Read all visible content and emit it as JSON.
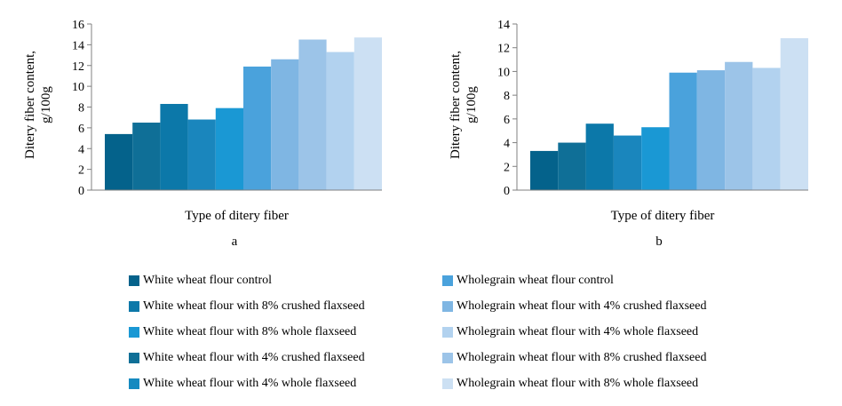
{
  "chart_data": [
    {
      "type": "bar",
      "panel_label": "a",
      "xlabel": "Type of ditery fiber",
      "ylabel": "Ditery fiber content, g/100g",
      "ylim": [
        0,
        16
      ],
      "yticks": [
        0,
        2,
        4,
        6,
        8,
        10,
        12,
        14,
        16
      ],
      "grid": false,
      "series": [
        {
          "name": "White wheat flour control",
          "values": [
            5.4
          ]
        },
        {
          "name": "White wheat flour with 8% crushed flaxseed",
          "values": [
            6.5
          ]
        },
        {
          "name": "White wheat flour with 8% whole flaxseed",
          "values": [
            8.3
          ]
        },
        {
          "name": "White wheat flour with 4% crushed flaxseed",
          "values": [
            6.8
          ]
        },
        {
          "name": "White wheat flour with 4% whole flaxseed",
          "values": [
            7.9
          ]
        },
        {
          "name": "Wholegrain wheat flour control",
          "values": [
            11.9
          ]
        },
        {
          "name": "Wholegrain wheat flour with 4% crushed flaxseed",
          "values": [
            12.6
          ]
        },
        {
          "name": "Wholegrain wheat flour with 4% whole flaxseed",
          "values": [
            14.5
          ]
        },
        {
          "name": "Wholegrain wheat flour with 8% crushed flaxseed",
          "values": [
            13.3
          ]
        },
        {
          "name": "Wholegrain wheat flour with 8% whole flaxseed",
          "values": [
            14.7
          ]
        }
      ]
    },
    {
      "type": "bar",
      "panel_label": "b",
      "xlabel": "Type of ditery fiber",
      "ylabel": "Ditery fiber content, g/100g",
      "ylim": [
        0,
        14
      ],
      "yticks": [
        0,
        2,
        4,
        6,
        8,
        10,
        12,
        14
      ],
      "grid": false,
      "series": [
        {
          "name": "White wheat flour control",
          "values": [
            3.3
          ]
        },
        {
          "name": "White wheat flour with 8% crushed flaxseed",
          "values": [
            4.0
          ]
        },
        {
          "name": "White wheat flour with 8% whole flaxseed",
          "values": [
            5.6
          ]
        },
        {
          "name": "White wheat flour with 4% crushed flaxseed",
          "values": [
            4.6
          ]
        },
        {
          "name": "White wheat flour with 4% whole flaxseed",
          "values": [
            5.3
          ]
        },
        {
          "name": "Wholegrain wheat flour control",
          "values": [
            9.9
          ]
        },
        {
          "name": "Wholegrain wheat flour with 4% crushed flaxseed",
          "values": [
            10.1
          ]
        },
        {
          "name": "Wholegrain wheat flour with 4% whole flaxseed",
          "values": [
            10.8
          ]
        },
        {
          "name": "Wholegrain wheat flour with 8% crushed flaxseed",
          "values": [
            10.3
          ]
        },
        {
          "name": "Wholegrain wheat flour with 8% whole flaxseed",
          "values": [
            12.8
          ]
        }
      ]
    }
  ],
  "legend": {
    "placement": "bottom",
    "columns": [
      [
        {
          "label": "White wheat flour control",
          "color": "#04628b"
        },
        {
          "label": "White wheat flour with 8% crushed flaxseed",
          "color": "#0c78a9"
        },
        {
          "label": "White wheat flour with 8% whole flaxseed",
          "color": "#1a98d4"
        },
        {
          "label": "White wheat flour with 4% crushed flaxseed",
          "color": "#0f6f97"
        },
        {
          "label": "White wheat flour with 4% whole flaxseed",
          "color": "#158ac0"
        }
      ],
      [
        {
          "label": "Wholegrain wheat flour control",
          "color": "#4aa2dc"
        },
        {
          "label": "Wholegrain wheat flour with 4% crushed flaxseed",
          "color": "#7fb6e3"
        },
        {
          "label": "Wholegrain wheat flour with 4% whole flaxseed",
          "color": "#b2d2ef"
        },
        {
          "label": "Wholegrain wheat flour with 8% crushed flaxseed",
          "color": "#9cc4e8"
        },
        {
          "label": "Wholegrain wheat flour with 8% whole flaxseed",
          "color": "#cce0f3"
        }
      ]
    ]
  },
  "bar_colors": [
    "#04628b",
    "#0f6f97",
    "#0c78a9",
    "#1a86bd",
    "#1a98d4",
    "#4aa2dc",
    "#7fb6e3",
    "#9cc4e8",
    "#b2d2ef",
    "#cce0f3"
  ]
}
